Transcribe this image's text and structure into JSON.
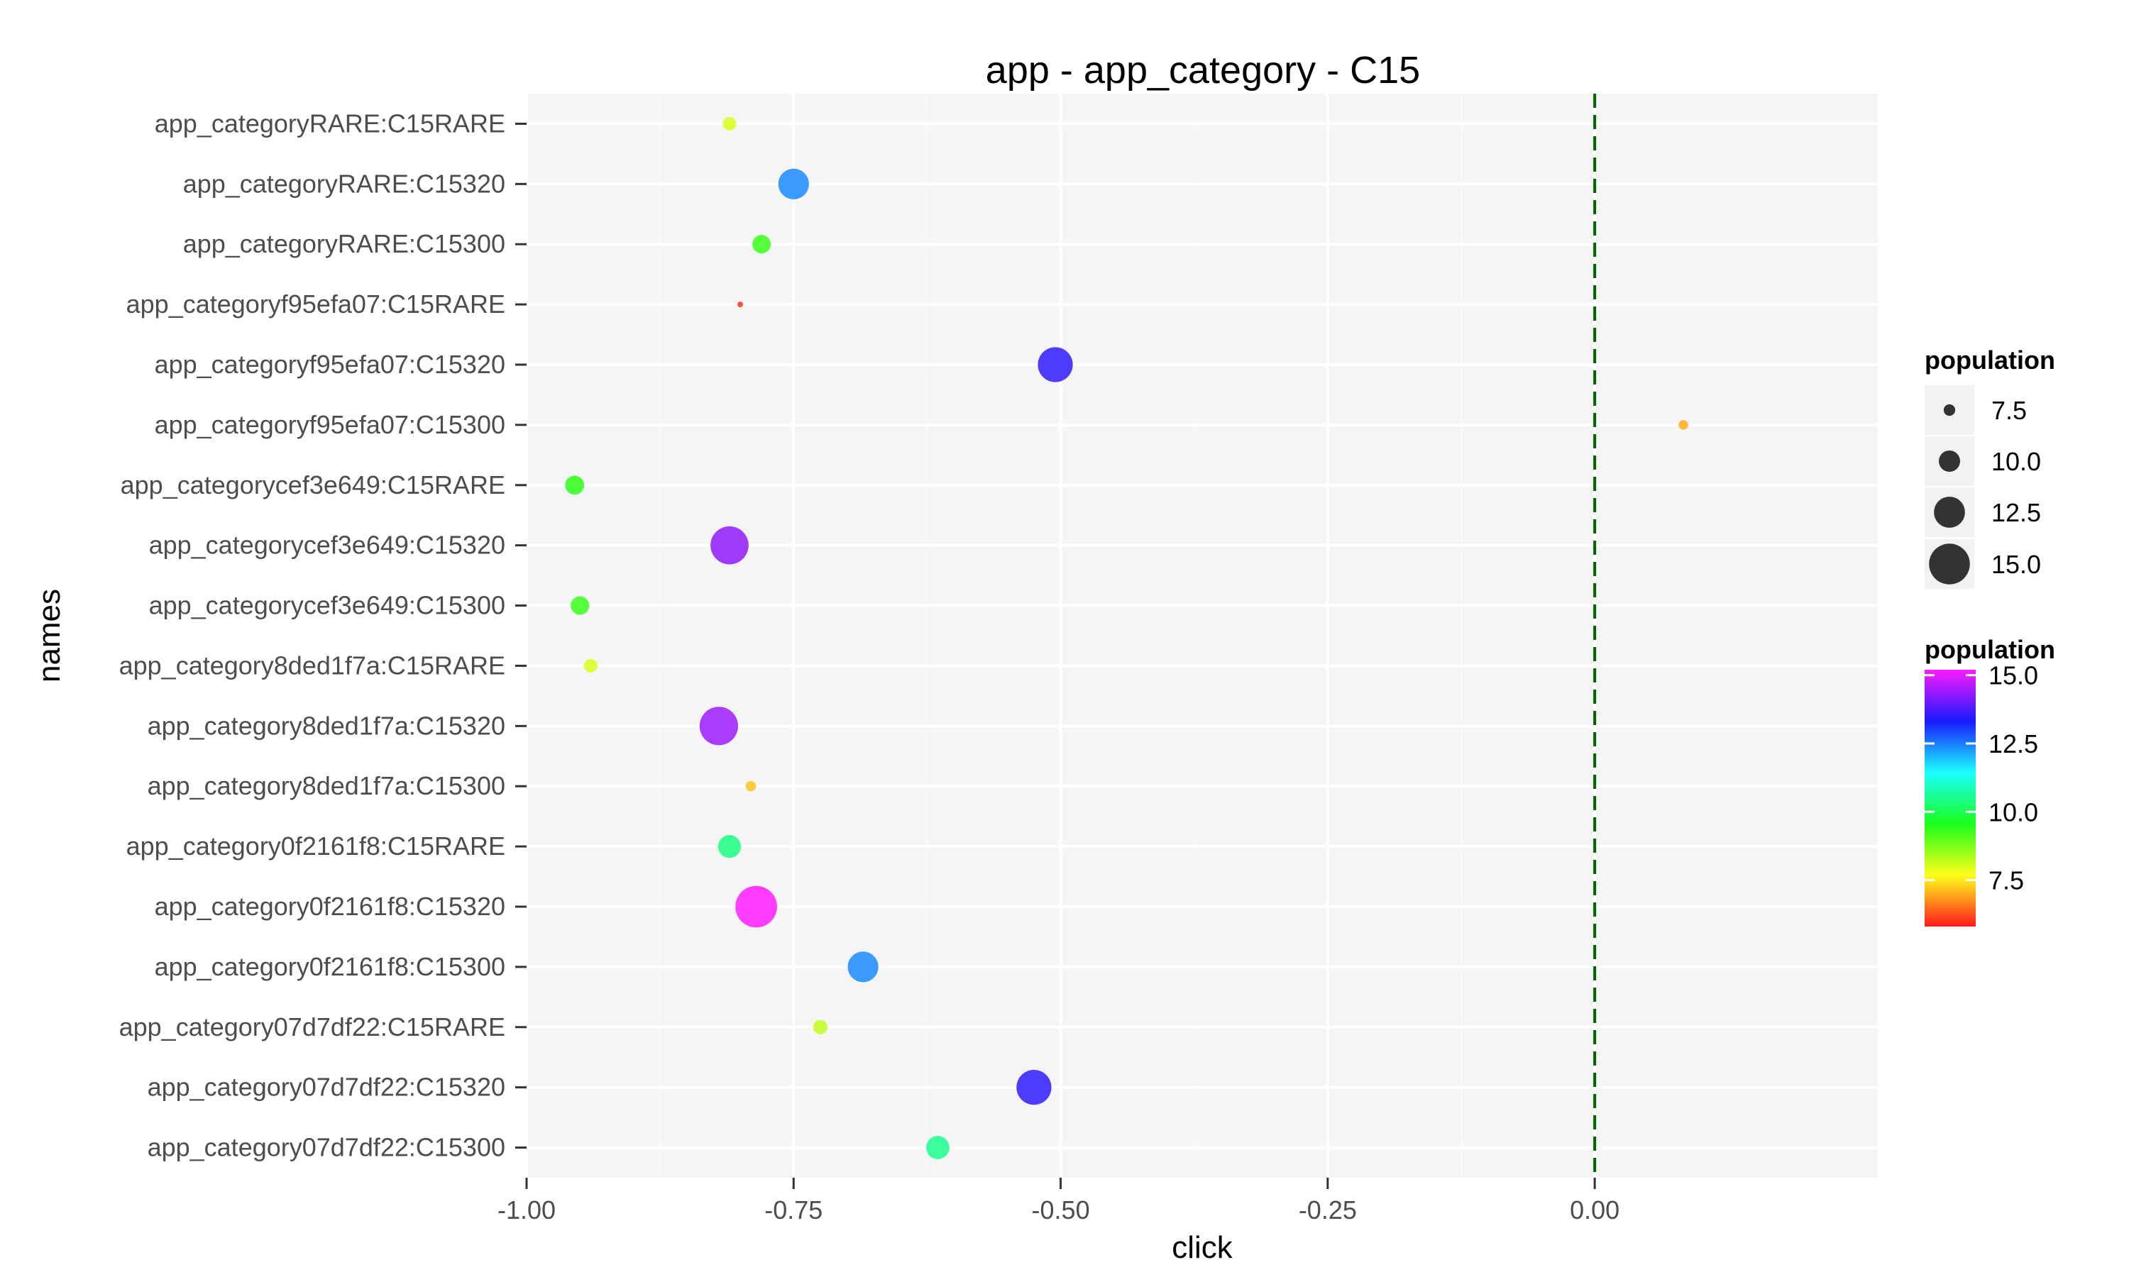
{
  "chart_data": {
    "type": "scatter",
    "title": "app - app_category - C15",
    "xlabel": "click",
    "ylabel": "names",
    "xlim": [
      -1.0,
      0.265
    ],
    "x_ticks": [
      -1.0,
      -0.75,
      -0.5,
      -0.25,
      0.0
    ],
    "x_tick_labels": [
      "-1.00",
      "-0.75",
      "-0.50",
      "-0.25",
      "0.00"
    ],
    "reference_line": {
      "x": 0.0,
      "style": "dashed",
      "color": "#006400"
    },
    "grid": true,
    "panel_background": "#f5f5f5",
    "categories": [
      "app_categoryRARE:C15RARE",
      "app_categoryRARE:C15320",
      "app_categoryRARE:C15300",
      "app_categoryf95efa07:C15RARE",
      "app_categoryf95efa07:C15320",
      "app_categoryf95efa07:C15300",
      "app_categorycef3e649:C15RARE",
      "app_categorycef3e649:C15320",
      "app_categorycef3e649:C15300",
      "app_category8ded1f7a:C15RARE",
      "app_category8ded1f7a:C15320",
      "app_category8ded1f7a:C15300",
      "app_category0f2161f8:C15RARE",
      "app_category0f2161f8:C15320",
      "app_category0f2161f8:C15300",
      "app_category07d7df22:C15RARE",
      "app_category07d7df22:C15320",
      "app_category07d7df22:C15300"
    ],
    "points": [
      {
        "name": "app_categoryRARE:C15RARE",
        "x": -0.81,
        "population": 8.0
      },
      {
        "name": "app_categoryRARE:C15320",
        "x": -0.75,
        "population": 12.4
      },
      {
        "name": "app_categoryRARE:C15300",
        "x": -0.78,
        "population": 9.3
      },
      {
        "name": "app_categoryf95efa07:C15RARE",
        "x": -0.8,
        "population": 6.0
      },
      {
        "name": "app_categoryf95efa07:C15320",
        "x": -0.505,
        "population": 13.5
      },
      {
        "name": "app_categoryf95efa07:C15300",
        "x": 0.083,
        "population": 7.0
      },
      {
        "name": "app_categorycef3e649:C15RARE",
        "x": -0.955,
        "population": 9.4
      },
      {
        "name": "app_categorycef3e649:C15320",
        "x": -0.81,
        "population": 14.3
      },
      {
        "name": "app_categorycef3e649:C15300",
        "x": -0.95,
        "population": 9.3
      },
      {
        "name": "app_category8ded1f7a:C15RARE",
        "x": -0.94,
        "population": 8.0
      },
      {
        "name": "app_category8ded1f7a:C15320",
        "x": -0.82,
        "population": 14.4
      },
      {
        "name": "app_category8ded1f7a:C15300",
        "x": -0.79,
        "population": 7.2
      },
      {
        "name": "app_category0f2161f8:C15RARE",
        "x": -0.81,
        "population": 10.4
      },
      {
        "name": "app_category0f2161f8:C15320",
        "x": -0.785,
        "population": 15.2
      },
      {
        "name": "app_category0f2161f8:C15300",
        "x": -0.685,
        "population": 12.4
      },
      {
        "name": "app_category07d7df22:C15RARE",
        "x": -0.725,
        "population": 8.2
      },
      {
        "name": "app_category07d7df22:C15320",
        "x": -0.525,
        "population": 13.5
      },
      {
        "name": "app_category07d7df22:C15300",
        "x": -0.615,
        "population": 10.5
      }
    ],
    "legend_size": {
      "title": "population",
      "values": [
        7.5,
        10.0,
        12.5,
        15.0
      ],
      "labels": [
        "7.5",
        "10.0",
        "12.5",
        "15.0"
      ]
    },
    "legend_color": {
      "title": "population",
      "range": [
        5.8,
        15.2
      ],
      "values": [
        7.5,
        10.0,
        12.5,
        15.0
      ],
      "labels": [
        "7.5",
        "10.0",
        "12.5",
        "15.0"
      ]
    },
    "legend_placement": "right"
  }
}
